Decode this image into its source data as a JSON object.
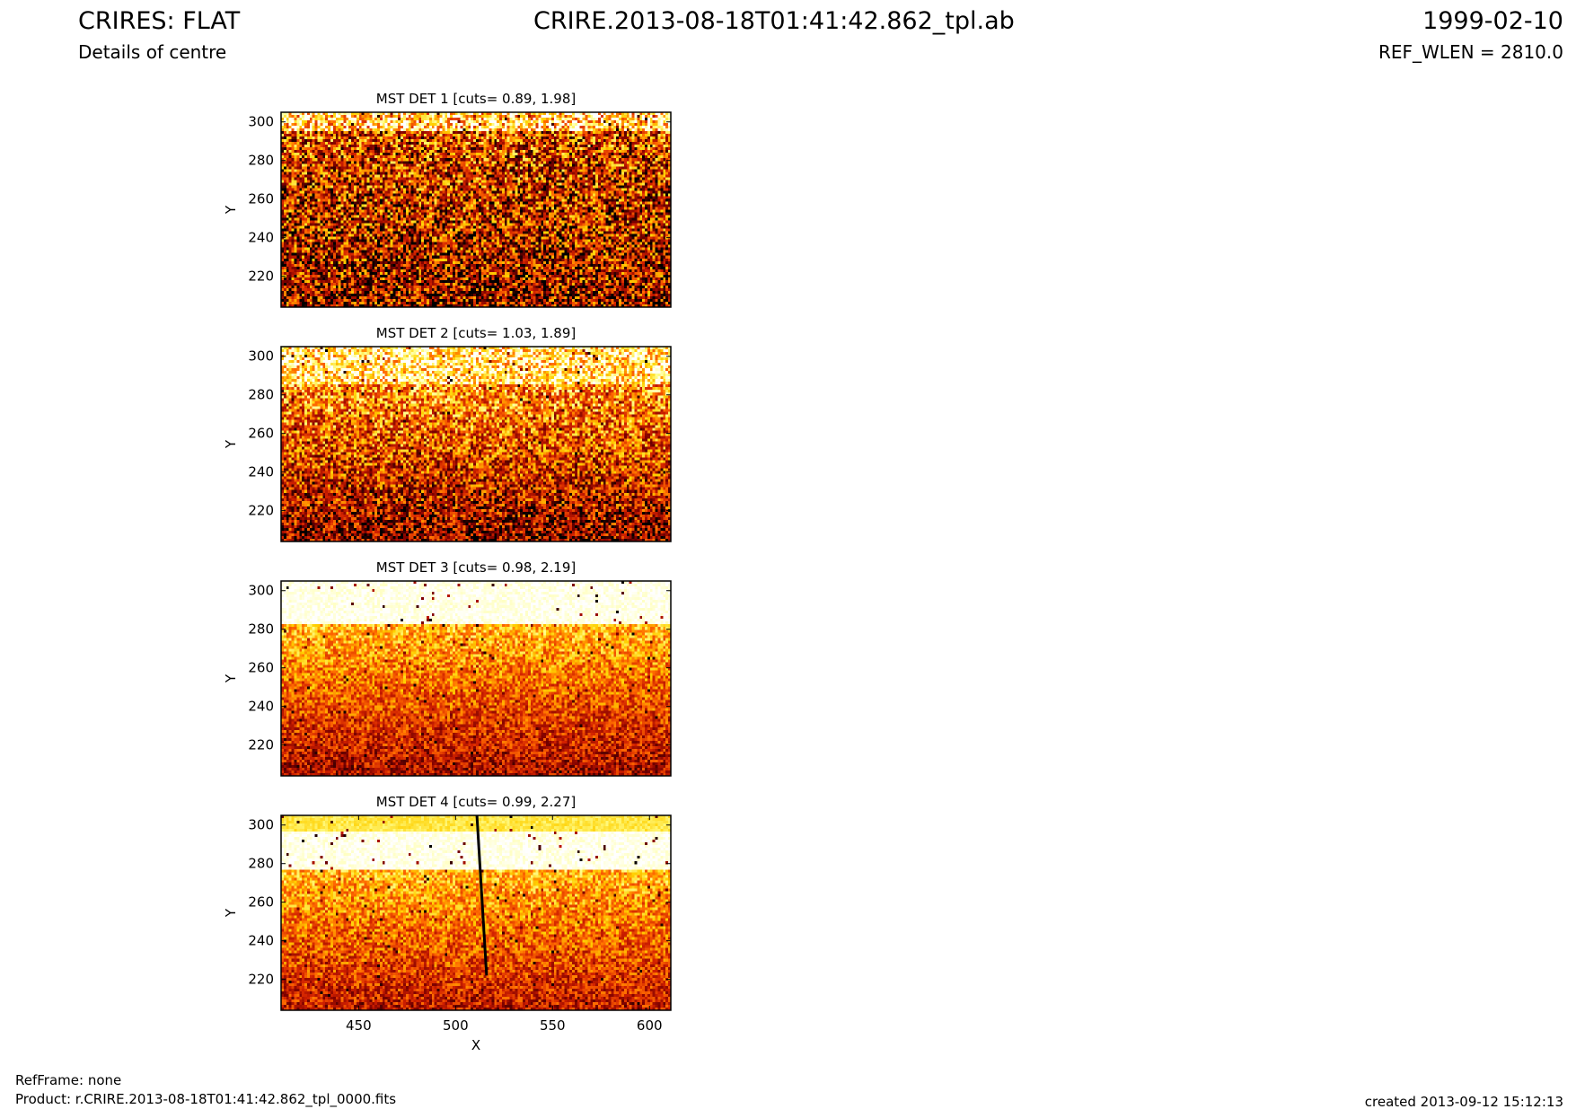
{
  "header": {
    "title": "CRIRES: FLAT",
    "subtitle": "Details of centre",
    "filename": "CRIRE.2013-08-18T01:41:42.862_tpl.ab",
    "date": "1999-02-10",
    "ref_wlen": "REF_WLEN = 2810.0"
  },
  "footer": {
    "refframe": "RefFrame: none",
    "product": "Product: r.CRIRE.2013-08-18T01:41:42.862_tpl_0000.fits",
    "created": "created 2013-09-12 15:12:13"
  },
  "colors": {
    "colormap": [
      "#000000",
      "#7a0000",
      "#d02000",
      "#ff6a00",
      "#ffd000",
      "#ffff90",
      "#ffffff"
    ],
    "frame": "#000000"
  },
  "chart_data": [
    {
      "type": "heatmap",
      "title": "MST DET 1 [cuts= 0.89, 1.98]",
      "xlabel": "",
      "ylabel": "Y",
      "xlim": [
        410,
        611
      ],
      "ylim": [
        204,
        305
      ],
      "xticks": [],
      "yticks": [
        220,
        240,
        260,
        280,
        300
      ],
      "cuts": [
        0.89,
        1.98
      ],
      "profile": {
        "bright_band_top": 295,
        "bright_band_level": 0.75,
        "body_low": 0.25,
        "body_high": 0.42,
        "noise": 0.55
      },
      "features": []
    },
    {
      "type": "heatmap",
      "title": "MST DET 2 [cuts= 1.03, 1.89]",
      "xlabel": "",
      "ylabel": "Y",
      "xlim": [
        410,
        611
      ],
      "ylim": [
        204,
        305
      ],
      "xticks": [],
      "yticks": [
        220,
        240,
        260,
        280,
        300
      ],
      "cuts": [
        1.03,
        1.89
      ],
      "profile": {
        "bright_band_top": 286,
        "bright_band_level": 0.78,
        "body_low": 0.2,
        "body_high": 0.6,
        "noise": 0.45
      },
      "features": []
    },
    {
      "type": "heatmap",
      "title": "MST DET 3 [cuts= 0.98, 2.19]",
      "xlabel": "",
      "ylabel": "Y",
      "xlim": [
        410,
        611
      ],
      "ylim": [
        204,
        305
      ],
      "xticks": [],
      "yticks": [
        220,
        240,
        260,
        280,
        300
      ],
      "cuts": [
        0.98,
        2.19
      ],
      "profile": {
        "bright_band_top": 282,
        "bright_band_level": 0.97,
        "body_low": 0.25,
        "body_high": 0.65,
        "noise": 0.28
      },
      "features": []
    },
    {
      "type": "heatmap",
      "title": "MST DET 4 [cuts= 0.99, 2.27]",
      "xlabel": "X",
      "ylabel": "Y",
      "xlim": [
        410,
        611
      ],
      "ylim": [
        204,
        305
      ],
      "xticks": [
        450,
        500,
        550,
        600
      ],
      "yticks": [
        220,
        240,
        260,
        280,
        300
      ],
      "cuts": [
        0.99,
        2.27
      ],
      "profile": {
        "bright_band_top": 277,
        "bright_band_level": 0.97,
        "body_low": 0.3,
        "body_high": 0.65,
        "noise": 0.28,
        "top_strip_from": 297
      },
      "features": [
        {
          "type": "dark-line",
          "x0": 511,
          "y0": 305,
          "x1": 516,
          "y1": 222
        }
      ]
    }
  ]
}
